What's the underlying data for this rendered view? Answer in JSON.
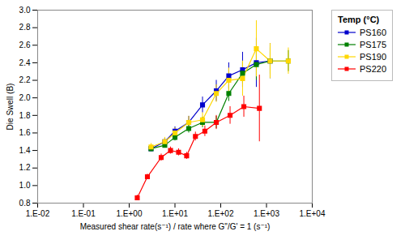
{
  "chart_data": {
    "type": "line",
    "xlabel": "Measured shear rate(s⁻¹) / rate where G\"/G' = 1 (s⁻¹)",
    "ylabel": "Die Swell (B)",
    "legend_title": "Temp (°C)",
    "log": "x",
    "xlim": [
      0.01,
      10000
    ],
    "xticks": [
      {
        "value": 0.01,
        "label": "1.E-02"
      },
      {
        "value": 0.1,
        "label": "1.E-01"
      },
      {
        "value": 1,
        "label": "1.E+00"
      },
      {
        "value": 10,
        "label": "1.E+01"
      },
      {
        "value": 100,
        "label": "1.E+02"
      },
      {
        "value": 1000,
        "label": "1.E+03"
      },
      {
        "value": 10000,
        "label": "1.E+04"
      }
    ],
    "ylim": [
      0.8,
      3.0
    ],
    "yticks": [
      0.8,
      {
        "value": 1.0,
        "label": "1.0"
      },
      1.2,
      1.4,
      1.6,
      1.8,
      {
        "value": 2.0,
        "label": "2.0"
      },
      2.2,
      2.4,
      2.6,
      2.8,
      {
        "value": 3.0,
        "label": "3.0"
      }
    ],
    "grid": false,
    "legend": "right",
    "marker": "square",
    "line_style": "solid",
    "series": [
      {
        "name": "PS160",
        "color": "#0000CC",
        "x": [
          3.0,
          6.0,
          10.0,
          20.0,
          40.0,
          80.0,
          150.0,
          300.0,
          600.0,
          1200.0
        ],
        "values": [
          1.42,
          1.5,
          1.62,
          1.72,
          1.92,
          2.08,
          2.25,
          2.32,
          2.4,
          2.42
        ],
        "yerr": [
          0.03,
          0.04,
          0.05,
          0.07,
          0.09,
          0.12,
          0.15,
          0.2,
          0.28,
          0.2
        ]
      },
      {
        "name": "PS175",
        "color": "#008000",
        "x": [
          3.0,
          6.0,
          10.0,
          20.0,
          40.0,
          80.0,
          150.0,
          300.0,
          600.0,
          1200.0,
          3000.0
        ],
        "values": [
          1.42,
          1.46,
          1.55,
          1.65,
          1.72,
          1.72,
          2.05,
          2.28,
          2.38,
          2.42,
          2.42
        ],
        "yerr": [
          0.03,
          0.03,
          0.04,
          0.05,
          0.06,
          0.07,
          0.09,
          0.12,
          0.18,
          0.15,
          0.12
        ]
      },
      {
        "name": "PS190",
        "color": "#FFD700",
        "x": [
          3.0,
          6.0,
          10.0,
          20.0,
          40.0,
          80.0,
          150.0,
          300.0,
          600.0,
          1200.0,
          3000.0
        ],
        "values": [
          1.44,
          1.5,
          1.6,
          1.72,
          1.75,
          2.05,
          2.2,
          2.22,
          2.56,
          2.42,
          2.42
        ],
        "yerr": [
          0.04,
          0.05,
          0.06,
          0.07,
          0.08,
          0.1,
          0.14,
          0.2,
          0.32,
          0.2,
          0.15
        ]
      },
      {
        "name": "PS220",
        "color": "#FF0000",
        "x": [
          1.5,
          2.5,
          5.0,
          8.0,
          12.0,
          18.0,
          28.0,
          45.0,
          80.0,
          160.0,
          320.0,
          700.0
        ],
        "values": [
          0.86,
          1.1,
          1.32,
          1.4,
          1.38,
          1.34,
          1.56,
          1.62,
          1.72,
          1.8,
          1.9,
          1.88
        ],
        "yerr": [
          0.03,
          0.03,
          0.04,
          0.04,
          0.04,
          0.04,
          0.05,
          0.06,
          0.08,
          0.1,
          0.12,
          0.38
        ]
      }
    ]
  }
}
